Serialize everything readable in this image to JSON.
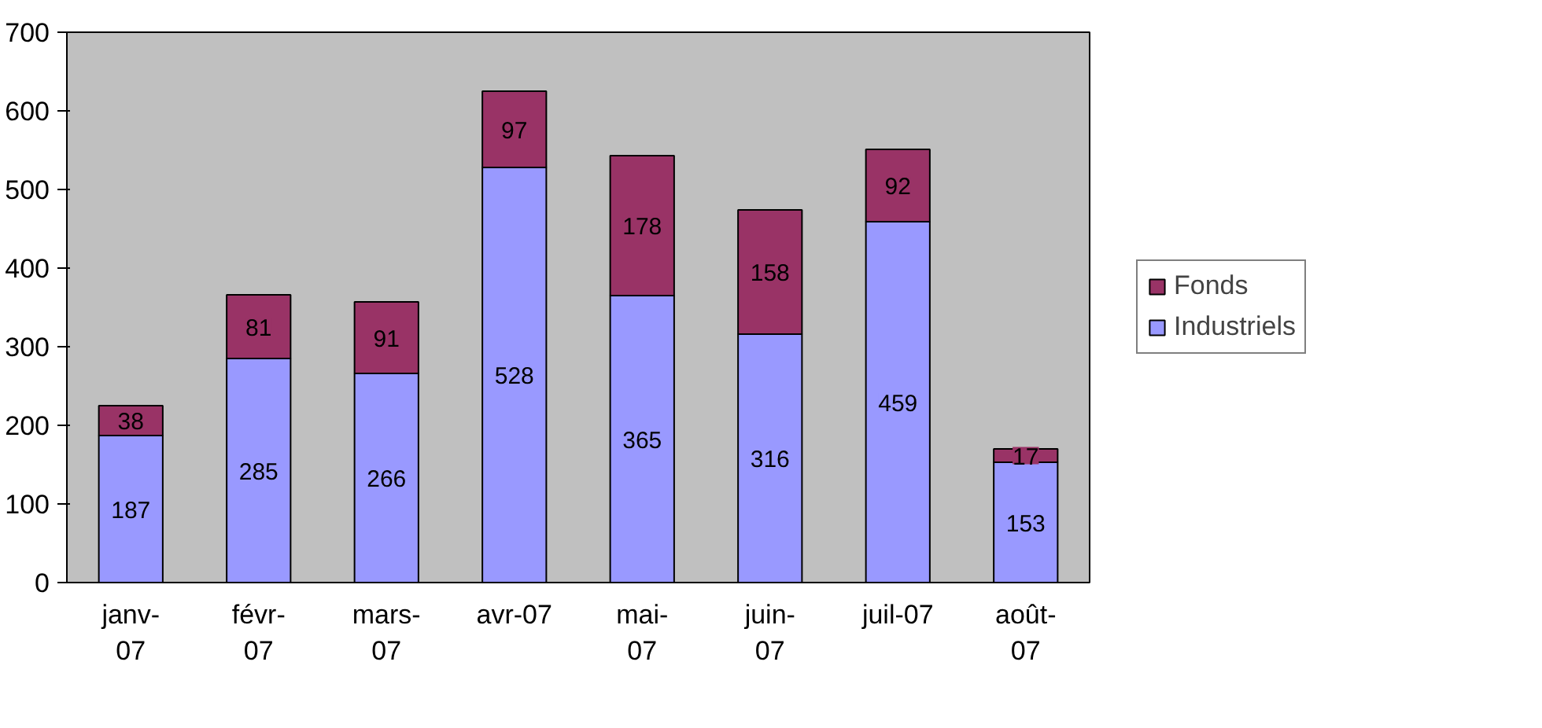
{
  "chart_data": {
    "type": "bar",
    "stacked": true,
    "categories": [
      "janv-\n07",
      "févr-\n07",
      "mars-\n07",
      "avr-07",
      "mai-\n07",
      "juin-\n07",
      "juil-07",
      "août-\n07"
    ],
    "series": [
      {
        "name": "Industriels",
        "color": "#9999ff",
        "values": [
          187,
          285,
          266,
          528,
          365,
          316,
          459,
          153
        ]
      },
      {
        "name": "Fonds",
        "color": "#993366",
        "values": [
          38,
          81,
          91,
          97,
          178,
          158,
          92,
          17
        ]
      }
    ],
    "ylim": [
      0,
      700
    ],
    "yticks": [
      0,
      100,
      200,
      300,
      400,
      500,
      600,
      700
    ],
    "data_labels": true,
    "legend": "right",
    "grid": false
  }
}
